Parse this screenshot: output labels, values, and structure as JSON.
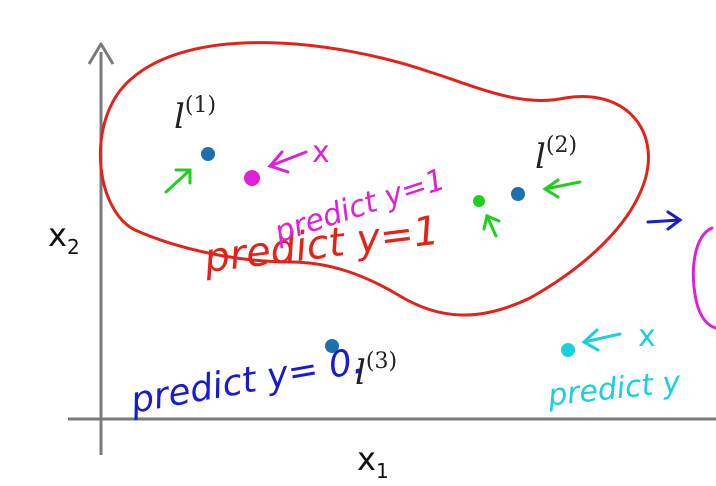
{
  "axes": {
    "x_label": "x",
    "x_sub": "1",
    "y_label": "x",
    "y_sub": "2"
  },
  "landmarks": [
    {
      "label": "l",
      "sup": "(1)"
    },
    {
      "label": "l",
      "sup": "(2)"
    },
    {
      "label": "l",
      "sup": "(3)"
    }
  ],
  "annotations": {
    "region_label": "predict y=1",
    "magenta_label": "predict y=1",
    "blue_label": "predict y= 0.",
    "cyan_label": "predict y",
    "magenta_x": "x",
    "cyan_x": "x"
  },
  "colors": {
    "red": "#e2231a",
    "magenta": "#e020d8",
    "green": "#1ed01e",
    "blue_pen": "#1a1ad0",
    "cyan": "#18d0e0",
    "dot": "#1e6fb0",
    "axis": "#7a7a7a"
  }
}
